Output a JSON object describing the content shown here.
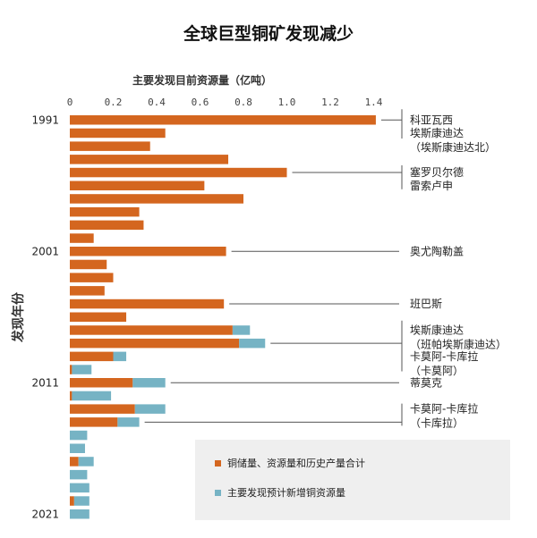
{
  "chart_data": {
    "type": "bar",
    "orientation": "horizontal",
    "stacked": true,
    "title": "全球巨型铜矿发现减少",
    "xlabel": "主要发现目前资源量（亿吨）",
    "ylabel": "发现年份",
    "xlim": [
      0,
      1.5
    ],
    "x_ticks": [
      "0",
      "0.2",
      "0.4",
      "0.6",
      "0.8",
      "1.0",
      "1.2",
      "1.4"
    ],
    "x_tick_values": [
      0,
      0.2,
      0.4,
      0.6,
      0.8,
      1.0,
      1.2,
      1.4
    ],
    "years": [
      1991,
      1992,
      1993,
      1994,
      1995,
      1996,
      1997,
      1998,
      1999,
      2000,
      2001,
      2002,
      2003,
      2004,
      2005,
      2006,
      2007,
      2008,
      2009,
      2010,
      2011,
      2012,
      2013,
      2014,
      2015,
      2016,
      2017,
      2018,
      2019,
      2020,
      2021
    ],
    "year_labels": [
      {
        "year": 1991,
        "text": "1991"
      },
      {
        "year": 2001,
        "text": "2001"
      },
      {
        "year": 2011,
        "text": "2011"
      },
      {
        "year": 2021,
        "text": "2021"
      }
    ],
    "series": [
      {
        "name": "铜储量、资源量和历史产量合计",
        "color": "#d4661f",
        "values": [
          1.41,
          0.44,
          0.37,
          0.73,
          1.0,
          0.62,
          0.8,
          0.32,
          0.34,
          0.11,
          0.72,
          0.17,
          0.2,
          0.16,
          0.71,
          0.26,
          0.75,
          0.78,
          0.2,
          0.01,
          0.29,
          0.01,
          0.3,
          0.22,
          0.0,
          0.0,
          0.04,
          0.0,
          0.0,
          0.02,
          0.0
        ]
      },
      {
        "name": "主要发现预计新增铜资源量",
        "color": "#76b3c4",
        "values": [
          0,
          0,
          0,
          0,
          0,
          0,
          0,
          0,
          0,
          0,
          0,
          0,
          0,
          0,
          0,
          0,
          0.08,
          0.12,
          0.06,
          0.09,
          0.15,
          0.18,
          0.14,
          0.1,
          0.08,
          0.07,
          0.07,
          0.08,
          0.09,
          0.07,
          0.09
        ]
      }
    ],
    "annotations": [
      {
        "year": 1991,
        "lines": [
          "科亚瓦西"
        ]
      },
      {
        "year": 1992,
        "lines": [
          "埃斯康迪达",
          "（埃斯康迪达北）"
        ]
      },
      {
        "year": 1995,
        "lines": [
          "塞罗贝尔德"
        ]
      },
      {
        "year": 1996,
        "lines": [
          "雷索卢申"
        ]
      },
      {
        "year": 2001,
        "lines": [
          "奥尤陶勒盖"
        ]
      },
      {
        "year": 2005,
        "lines": [
          "班巴斯"
        ]
      },
      {
        "year": 2007,
        "lines": [
          "埃斯康迪达",
          "（班帕埃斯康迪达）"
        ]
      },
      {
        "year": 2009,
        "lines": [
          "卡莫阿-卡库拉",
          "（卡莫阿）"
        ]
      },
      {
        "year": 2011,
        "lines": [
          "蒂莫克"
        ]
      },
      {
        "year": 2013,
        "lines": [
          "卡莫阿-卡库拉",
          "（卡库拉）"
        ]
      }
    ],
    "legend_position": "bottom-right"
  }
}
